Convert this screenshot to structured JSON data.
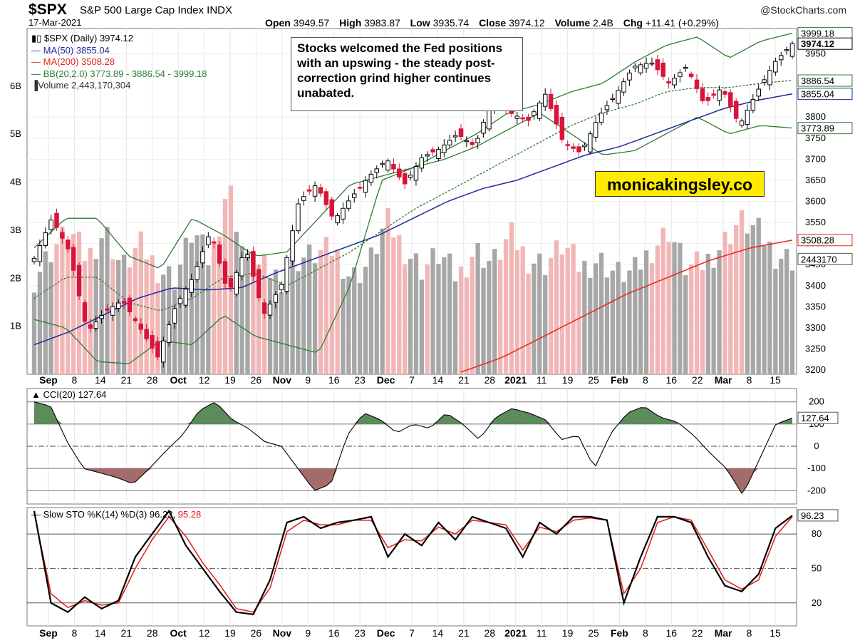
{
  "header": {
    "symbol": "$SPX",
    "name": "S&P 500 Large Cap Index INDX",
    "date": "17-Mar-2021",
    "copyright": "@StockCharts.com",
    "ohlc": [
      {
        "label": "Open",
        "value": "3949.57"
      },
      {
        "label": "High",
        "value": "3983.87"
      },
      {
        "label": "Low",
        "value": "3935.74"
      },
      {
        "label": "Close",
        "value": "3974.12"
      },
      {
        "label": "Volume",
        "value": "2.4B"
      },
      {
        "label": "Chg",
        "value": "+11.41 (+0.29%)"
      }
    ]
  },
  "legend": {
    "price": "$SPX (Daily) 3974.12",
    "ma50": "MA(50) 3855.04",
    "ma200": "MA(200) 3508.28",
    "bb": "BB(20,2.0) 3773.89 - 3886.54 - 3999.18",
    "volume": "Volume 2,443,170,304"
  },
  "annotation": "Stocks welcomed the Fed positions with an upswing - the steady post-correction grind higher continues unabated.",
  "brand": "monicakingsley.co",
  "panels": {
    "cci_label": "CCI(20) 127.64",
    "sto_label": "Slow STO %K(14) %D(3) 96.23,",
    "sto_label_d": "95.28"
  },
  "colors": {
    "up": "#000000",
    "down": "#d9143a",
    "ma50": "#1f2a9c",
    "ma200": "#e5281e",
    "bb": "#2e7d32",
    "vol_up": "#a7a7a7",
    "vol_down": "#f2b6b6",
    "cci_fill_pos": "#5b8c5a",
    "cci_fill_neg": "#a56b6b",
    "sto_d": "#e31a1a"
  },
  "chart_data": {
    "type": "candlestick",
    "x_tick_labels": [
      "Sep",
      "8",
      "14",
      "21",
      "28",
      "Oct",
      "12",
      "19",
      "26",
      "Nov",
      "9",
      "16",
      "23",
      "Dec",
      "7",
      "14",
      "21",
      "28",
      "2021",
      "11",
      "19",
      "25",
      "Feb",
      "8",
      "16",
      "22",
      "Mar",
      "8",
      "15"
    ],
    "price_axis": {
      "ticks": [
        3200,
        3250,
        3300,
        3350,
        3400,
        3450,
        3500,
        3550,
        3600,
        3650,
        3700,
        3750,
        3800,
        3950
      ],
      "ylim": [
        3190,
        4010
      ],
      "last_labels": [
        "3999.18",
        "3974.12",
        "3886.54",
        "3855.04",
        "3773.89",
        "3508.28",
        "2443170"
      ]
    },
    "volume_axis": {
      "ticks": [
        "1B",
        "2B",
        "3B",
        "4B",
        "5B",
        "6B"
      ],
      "ylim_billions": [
        0,
        7.2
      ]
    },
    "price_anchors": [
      3465,
      3560,
      3480,
      3290,
      3338,
      3365,
      3300,
      3230,
      3350,
      3420,
      3530,
      3380,
      3490,
      3330,
      3400,
      3600,
      3640,
      3555,
      3610,
      3660,
      3700,
      3640,
      3705,
      3725,
      3760,
      3730,
      3850,
      3810,
      3790,
      3855,
      3740,
      3715,
      3800,
      3855,
      3920,
      3930,
      3880,
      3920,
      3830,
      3870,
      3780,
      3860,
      3930,
      3974
    ],
    "volume_anchors_billions": [
      2.0,
      2.6,
      3.0,
      2.4,
      3.0,
      2.2,
      2.7,
      2.2,
      2.0,
      3.0,
      2.3,
      4.0,
      2.3,
      2.2,
      2.0,
      2.4,
      2.5,
      2.6,
      2.0,
      2.3,
      3.2,
      2.6,
      2.2,
      2.5,
      2.0,
      2.6,
      2.3,
      2.9,
      2.4,
      2.3,
      2.7,
      2.2,
      2.4,
      2.1,
      2.1,
      2.6,
      3.0,
      2.2,
      2.3,
      2.7,
      3.2,
      3.0,
      2.5,
      2.4
    ],
    "ma50_anchors": [
      3260,
      3290,
      3330,
      3370,
      3395,
      3390,
      3395,
      3430,
      3460,
      3490,
      3520,
      3560,
      3600,
      3630,
      3650,
      3680,
      3710,
      3730,
      3760,
      3790,
      3820,
      3840,
      3855
    ],
    "ma200_anchors": [
      3195,
      3230,
      3280,
      3330,
      3380,
      3420,
      3460,
      3490,
      3508
    ],
    "bb_upper_anchors": [
      3490,
      3560,
      3560,
      3470,
      3440,
      3560,
      3520,
      3470,
      3480,
      3560,
      3640,
      3660,
      3680,
      3720,
      3760,
      3810,
      3830,
      3860,
      3880,
      3930,
      3970,
      3990,
      3940,
      3980,
      3999
    ],
    "bb_middle_anchors": [
      3370,
      3420,
      3420,
      3360,
      3340,
      3370,
      3420,
      3430,
      3400,
      3440,
      3480,
      3530,
      3580,
      3620,
      3660,
      3700,
      3740,
      3780,
      3810,
      3830,
      3860,
      3870,
      3870,
      3880,
      3887
    ],
    "bb_lower_anchors": [
      3320,
      3300,
      3220,
      3215,
      3270,
      3260,
      3330,
      3280,
      3260,
      3240,
      3400,
      3650,
      3680,
      3700,
      3730,
      3770,
      3810,
      3760,
      3710,
      3720,
      3760,
      3800,
      3760,
      3780,
      3774
    ],
    "cci": {
      "ticks": [
        -200,
        -100,
        0,
        100,
        200
      ],
      "ylim": [
        -260,
        260
      ],
      "last": "127.64",
      "anchors": [
        200,
        180,
        20,
        -100,
        -120,
        -140,
        -170,
        -100,
        -20,
        50,
        160,
        200,
        120,
        80,
        20,
        0,
        -100,
        -200,
        -170,
        50,
        150,
        120,
        60,
        100,
        80,
        150,
        100,
        30,
        130,
        170,
        150,
        120,
        30,
        50,
        -100,
        60,
        150,
        180,
        130,
        110,
        50,
        -30,
        -100,
        -220,
        -60,
        100,
        127
      ]
    },
    "stochastic": {
      "ticks": [
        20,
        50,
        80
      ],
      "ylim": [
        0,
        103
      ],
      "last_k": "96.23",
      "k_anchors": [
        100,
        20,
        12,
        25,
        15,
        22,
        60,
        80,
        100,
        70,
        50,
        30,
        12,
        10,
        40,
        90,
        95,
        85,
        90,
        92,
        95,
        60,
        80,
        70,
        90,
        75,
        95,
        90,
        85,
        60,
        90,
        80,
        95,
        95,
        92,
        20,
        60,
        95,
        95,
        90,
        60,
        35,
        30,
        45,
        85,
        96
      ],
      "d_anchors": [
        98,
        28,
        16,
        22,
        18,
        20,
        50,
        75,
        95,
        78,
        55,
        36,
        15,
        12,
        33,
        82,
        92,
        88,
        88,
        92,
        92,
        68,
        75,
        74,
        86,
        80,
        92,
        90,
        88,
        66,
        86,
        82,
        92,
        94,
        92,
        28,
        50,
        90,
        95,
        92,
        66,
        40,
        32,
        40,
        78,
        95
      ]
    }
  }
}
